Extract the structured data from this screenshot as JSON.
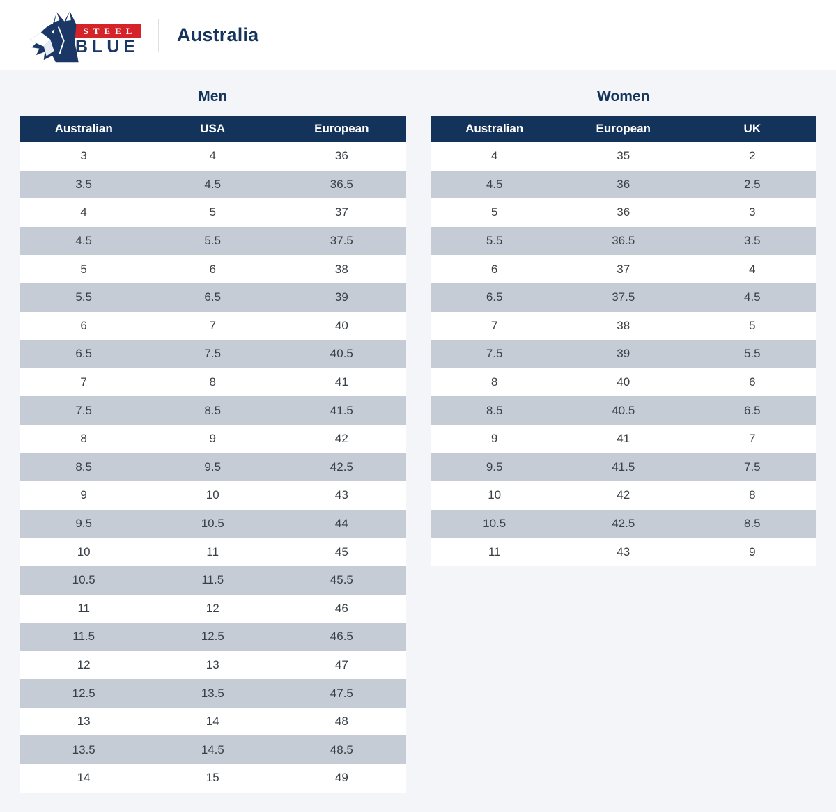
{
  "header": {
    "logo": {
      "steel": "STEEL",
      "blue": "BLUE",
      "registered": "®"
    },
    "region": "Australia"
  },
  "sections": [
    {
      "title": "Men",
      "columns": [
        "Australian",
        "USA",
        "European"
      ],
      "rows": [
        [
          "3",
          "4",
          "36"
        ],
        [
          "3.5",
          "4.5",
          "36.5"
        ],
        [
          "4",
          "5",
          "37"
        ],
        [
          "4.5",
          "5.5",
          "37.5"
        ],
        [
          "5",
          "6",
          "38"
        ],
        [
          "5.5",
          "6.5",
          "39"
        ],
        [
          "6",
          "7",
          "40"
        ],
        [
          "6.5",
          "7.5",
          "40.5"
        ],
        [
          "7",
          "8",
          "41"
        ],
        [
          "7.5",
          "8.5",
          "41.5"
        ],
        [
          "8",
          "9",
          "42"
        ],
        [
          "8.5",
          "9.5",
          "42.5"
        ],
        [
          "9",
          "10",
          "43"
        ],
        [
          "9.5",
          "10.5",
          "44"
        ],
        [
          "10",
          "11",
          "45"
        ],
        [
          "10.5",
          "11.5",
          "45.5"
        ],
        [
          "11",
          "12",
          "46"
        ],
        [
          "11.5",
          "12.5",
          "46.5"
        ],
        [
          "12",
          "13",
          "47"
        ],
        [
          "12.5",
          "13.5",
          "47.5"
        ],
        [
          "13",
          "14",
          "48"
        ],
        [
          "13.5",
          "14.5",
          "48.5"
        ],
        [
          "14",
          "15",
          "49"
        ]
      ]
    },
    {
      "title": "Women",
      "columns": [
        "Australian",
        "European",
        "UK"
      ],
      "rows": [
        [
          "4",
          "35",
          "2"
        ],
        [
          "4.5",
          "36",
          "2.5"
        ],
        [
          "5",
          "36",
          "3"
        ],
        [
          "5.5",
          "36.5",
          "3.5"
        ],
        [
          "6",
          "37",
          "4"
        ],
        [
          "6.5",
          "37.5",
          "4.5"
        ],
        [
          "7",
          "38",
          "5"
        ],
        [
          "7.5",
          "39",
          "5.5"
        ],
        [
          "8",
          "40",
          "6"
        ],
        [
          "8.5",
          "40.5",
          "6.5"
        ],
        [
          "9",
          "41",
          "7"
        ],
        [
          "9.5",
          "41.5",
          "7.5"
        ],
        [
          "10",
          "42",
          "8"
        ],
        [
          "10.5",
          "42.5",
          "8.5"
        ],
        [
          "11",
          "43",
          "9"
        ]
      ]
    }
  ],
  "colors": {
    "navy": "#14335B",
    "brand_red": "#D5232A",
    "row_alt": "#C6CCD5",
    "page_bg": "#F4F5F8",
    "topbar_bg": "#FFFFFF"
  }
}
